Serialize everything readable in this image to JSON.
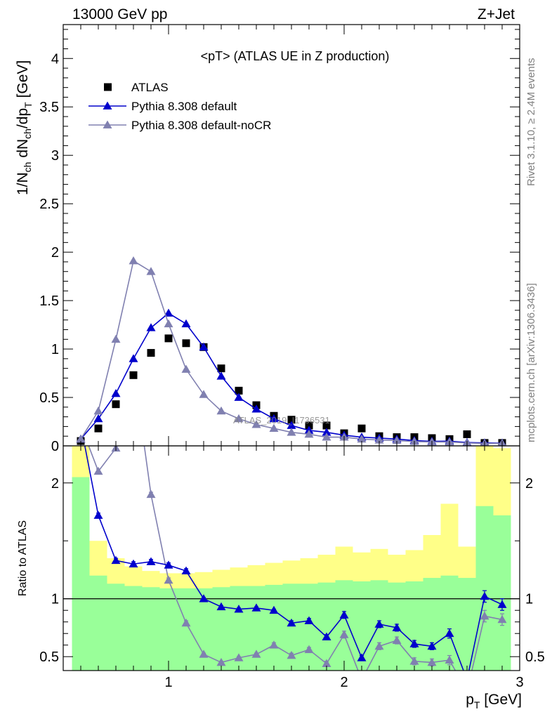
{
  "header": {
    "left": "13000 GeV pp",
    "right": "Z+Jet"
  },
  "side_labels": {
    "top": "Rivet 3.1.10, ≥ 2.4M events",
    "bottom": "mcplots.cern.ch [arXiv:1306.3436]"
  },
  "watermark": "ATLAS_2019_I1736531",
  "chart_data": [
    {
      "type": "scatter",
      "title": "<pT> (ATLAS UE in Z production)",
      "xlabel": "p_T [GeV]",
      "ylabel": "1/N_ch dN_ch/dp_T [GeV]",
      "xlim": [
        0.4,
        3.0
      ],
      "ylim": [
        0,
        4.35
      ],
      "yticks": [
        0,
        0.5,
        1,
        1.5,
        2,
        2.5,
        3,
        3.5,
        4
      ],
      "ytick_labels": [
        "0",
        "0.5",
        "1",
        "1.5",
        "2",
        "2.5",
        "3",
        "3.5",
        "4"
      ],
      "legend_position": "top-left",
      "x": [
        0.5,
        0.6,
        0.7,
        0.8,
        0.9,
        1.0,
        1.1,
        1.2,
        1.3,
        1.4,
        1.5,
        1.6,
        1.7,
        1.8,
        1.9,
        2.0,
        2.1,
        2.2,
        2.3,
        2.4,
        2.5,
        2.6,
        2.7,
        2.8,
        2.9
      ],
      "series": [
        {
          "name": "ATLAS",
          "marker": "square",
          "color": "#000000",
          "values": [
            0.05,
            0.18,
            0.43,
            0.73,
            0.96,
            1.11,
            1.06,
            1.02,
            0.8,
            0.57,
            0.42,
            0.31,
            0.27,
            0.21,
            0.21,
            0.13,
            0.18,
            0.1,
            0.09,
            0.09,
            0.08,
            0.07,
            0.12,
            0.03,
            0.03
          ]
        },
        {
          "name": "Pythia 8.308 default",
          "marker": "triangle",
          "color": "#0000cc",
          "values": [
            0.07,
            0.28,
            0.54,
            0.9,
            1.22,
            1.37,
            1.26,
            1.02,
            0.72,
            0.5,
            0.38,
            0.28,
            0.21,
            0.16,
            0.14,
            0.11,
            0.09,
            0.08,
            0.07,
            0.055,
            0.047,
            0.049,
            0.035,
            0.03,
            0.028
          ]
        },
        {
          "name": "Pythia 8.308 default-noCR",
          "marker": "triangle",
          "color": "#8080b0",
          "values": [
            0.07,
            0.36,
            1.1,
            1.91,
            1.8,
            1.26,
            0.79,
            0.53,
            0.36,
            0.28,
            0.22,
            0.18,
            0.14,
            0.12,
            0.09,
            0.09,
            0.07,
            0.06,
            0.055,
            0.045,
            0.04,
            0.04,
            0.03,
            0.025,
            0.025
          ]
        }
      ]
    },
    {
      "type": "line",
      "ylabel": "Ratio to ATLAS",
      "xlabel": "p_T [GeV]",
      "xlim": [
        0.4,
        3.0
      ],
      "ylim": [
        0.38,
        2.32
      ],
      "xticks": [
        1,
        2,
        3
      ],
      "xtick_labels": [
        "1",
        "2",
        "3"
      ],
      "yticks": [
        0.5,
        1,
        2
      ],
      "ytick_labels": [
        "0.5",
        "1",
        "2"
      ],
      "reference_line": 1,
      "bin_edges": [
        0.45,
        0.55,
        0.65,
        0.75,
        0.85,
        0.95,
        1.05,
        1.15,
        1.25,
        1.35,
        1.45,
        1.55,
        1.65,
        1.75,
        1.85,
        1.95,
        2.05,
        2.15,
        2.25,
        2.35,
        2.45,
        2.55,
        2.65,
        2.75,
        2.85,
        2.95
      ],
      "bands": [
        {
          "name": "total uncertainty",
          "color": "#ffff88",
          "upper": [
            2.4,
            1.5,
            1.35,
            1.28,
            1.24,
            1.22,
            1.22,
            1.23,
            1.25,
            1.27,
            1.29,
            1.31,
            1.33,
            1.35,
            1.38,
            1.45,
            1.4,
            1.43,
            1.38,
            1.42,
            1.55,
            1.82,
            1.45,
            2.45,
            2.3
          ],
          "lower": [
            0.38,
            0.58,
            0.79,
            0.84,
            0.86,
            0.87,
            0.88,
            0.88,
            0.87,
            0.86,
            0.84,
            0.82,
            0.8,
            0.78,
            0.74,
            0.6,
            0.64,
            0.56,
            0.6,
            0.57,
            0.45,
            0.2,
            0.56,
            0.38,
            0.38
          ]
        },
        {
          "name": "stat uncertainty",
          "color": "#99ff99",
          "upper": [
            2.05,
            1.2,
            1.13,
            1.11,
            1.1,
            1.09,
            1.09,
            1.09,
            1.1,
            1.11,
            1.11,
            1.12,
            1.13,
            1.13,
            1.14,
            1.16,
            1.15,
            1.16,
            1.14,
            1.15,
            1.18,
            1.2,
            1.18,
            1.8,
            1.72
          ],
          "lower": [
            0.38,
            0.38,
            0.38,
            0.38,
            0.38,
            0.38,
            0.38,
            0.38,
            0.38,
            0.38,
            0.38,
            0.38,
            0.38,
            0.38,
            0.38,
            0.38,
            0.38,
            0.38,
            0.38,
            0.38,
            0.38,
            0.38,
            0.38,
            0.38,
            0.38
          ]
        }
      ],
      "x": [
        0.5,
        0.6,
        0.7,
        0.8,
        0.9,
        1.0,
        1.1,
        1.2,
        1.3,
        1.4,
        1.5,
        1.6,
        1.7,
        1.8,
        1.9,
        2.0,
        2.1,
        2.2,
        2.3,
        2.4,
        2.5,
        2.6,
        2.7,
        2.8,
        2.9
      ],
      "series": [
        {
          "name": "Pythia 8.308 default",
          "color": "#0000cc",
          "values": [
            2.5,
            1.72,
            1.33,
            1.3,
            1.32,
            1.29,
            1.24,
            1.0,
            0.93,
            0.91,
            0.92,
            0.9,
            0.79,
            0.81,
            0.67,
            0.86,
            0.49,
            0.78,
            0.75,
            0.61,
            0.59,
            0.7,
            0.3,
            1.02,
            0.95
          ],
          "errors": [
            0.02,
            0.02,
            0.02,
            0.02,
            0.02,
            0.02,
            0.02,
            0.01,
            0.01,
            0.01,
            0.01,
            0.01,
            0.02,
            0.02,
            0.02,
            0.03,
            0.02,
            0.03,
            0.03,
            0.03,
            0.03,
            0.04,
            0.03,
            0.05,
            0.05
          ]
        },
        {
          "name": "Pythia 8.308 default-noCR",
          "color": "#8080b0",
          "values": [
            2.5,
            2.1,
            2.3,
            3.0,
            1.9,
            1.16,
            0.79,
            0.52,
            0.45,
            0.49,
            0.52,
            0.6,
            0.51,
            0.56,
            0.44,
            0.69,
            0.3,
            0.59,
            0.64,
            0.46,
            0.45,
            0.47,
            0.2,
            0.85,
            0.82
          ],
          "errors": [
            0.02,
            0.02,
            0.02,
            0.02,
            0.02,
            0.02,
            0.02,
            0.01,
            0.01,
            0.01,
            0.01,
            0.02,
            0.02,
            0.02,
            0.02,
            0.03,
            0.02,
            0.03,
            0.03,
            0.03,
            0.03,
            0.04,
            0.03,
            0.05,
            0.05
          ]
        }
      ]
    }
  ]
}
